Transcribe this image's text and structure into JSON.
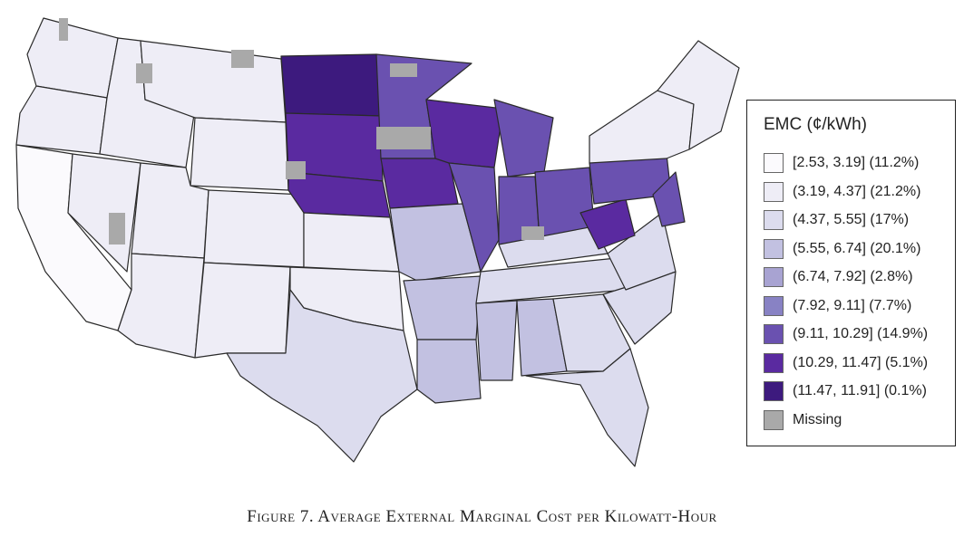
{
  "legend": {
    "title": "EMC (¢/kWh)",
    "items": [
      {
        "label": "[2.53, 3.19] (11.2%)",
        "color": "#fbfafd"
      },
      {
        "label": "(3.19, 4.37] (21.2%)",
        "color": "#eeedf6"
      },
      {
        "label": "(4.37, 5.55] (17%)",
        "color": "#dcdcee"
      },
      {
        "label": "(5.55, 6.74] (20.1%)",
        "color": "#c2c1e1"
      },
      {
        "label": "(6.74, 7.92] (2.8%)",
        "color": "#a8a3d2"
      },
      {
        "label": "(7.92, 9.11] (7.7%)",
        "color": "#8882c4"
      },
      {
        "label": "(9.11, 10.29] (14.9%)",
        "color": "#6a51b0"
      },
      {
        "label": "(10.29, 11.47] (5.1%)",
        "color": "#5a2aa0"
      },
      {
        "label": "(11.47, 11.91] (0.1%)",
        "color": "#3d1a7e"
      },
      {
        "label": "Missing",
        "color": "#a9a9a9"
      }
    ]
  },
  "caption": "Figure 7. Average External Marginal Cost per Kilowatt-Hour"
}
